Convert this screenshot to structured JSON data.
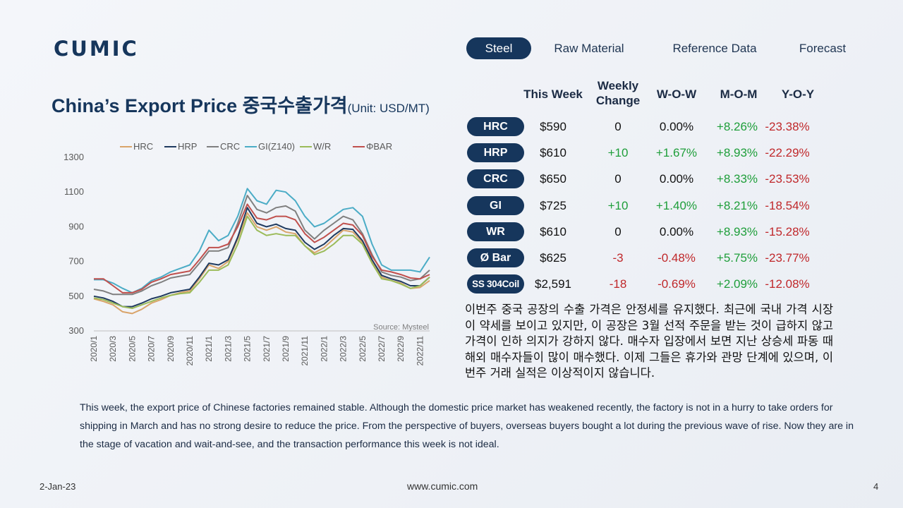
{
  "brand": {
    "logo": "CUMIC"
  },
  "nav": {
    "items": [
      {
        "label": "Steel",
        "active": true
      },
      {
        "label": "Raw Material",
        "active": false
      },
      {
        "label": "Reference Data",
        "active": false
      },
      {
        "label": "Forecast",
        "active": false
      }
    ]
  },
  "title": {
    "main": "China’s Export Price 중국수출가격",
    "unit": "(Unit: USD/MT)"
  },
  "table": {
    "headers": [
      "This Week",
      "Weekly Change",
      "W-O-W",
      "M-O-M",
      "Y-O-Y"
    ],
    "rows": [
      {
        "product": "HRC",
        "this_week": "$590",
        "weekly_change": "0",
        "wow": "0.00%",
        "mom": "+8.26%",
        "yoy": "-23.38%"
      },
      {
        "product": "HRP",
        "this_week": "$610",
        "weekly_change": "+10",
        "wow": "+1.67%",
        "mom": "+8.93%",
        "yoy": "-22.29%"
      },
      {
        "product": "CRC",
        "this_week": "$650",
        "weekly_change": "0",
        "wow": "0.00%",
        "mom": "+8.33%",
        "yoy": "-23.53%"
      },
      {
        "product": "GI",
        "this_week": "$725",
        "weekly_change": "+10",
        "wow": "+1.40%",
        "mom": "+8.21%",
        "yoy": "-18.54%"
      },
      {
        "product": "WR",
        "this_week": "$610",
        "weekly_change": "0",
        "wow": "0.00%",
        "mom": "+8.93%",
        "yoy": "-15.28%"
      },
      {
        "product": "Ø Bar",
        "this_week": "$625",
        "weekly_change": "-3",
        "wow": "-0.48%",
        "mom": "+5.75%",
        "yoy": "-23.77%"
      },
      {
        "product": "SS 304Coil",
        "this_week": "$2,591",
        "weekly_change": "-18",
        "wow": "-0.69%",
        "mom": "+2.09%",
        "yoy": "-12.08%"
      }
    ]
  },
  "commentary": {
    "korean": "이번주 중국 공장의 수출 가격은 안정세를 유지했다. 최근에 국내 가격 시장이 약세를 보이고 있지만, 이 공장은 3월 선적 주문을 받는 것이 급하지 않고 가격이 인하 의지가 강하지 않다. 매수자 입장에서 보면 지난 상승세 파동 때 해외 매수자들이 많이 매수했다. 이제 그들은 휴가와 관망 단계에 있으며, 이번주 거래 실적은 이상적이지 않습니다.",
    "english": "This week, the export price of Chinese factories remained stable. Although the domestic price market has weakened recently, the factory is not in a hurry to take orders for shipping in March and has no strong desire to reduce the price. From the perspective of buyers, overseas buyers bought a lot during the previous wave of rise. Now they are in the stage of vacation and wait-and-see, and the transaction performance this week is not ideal."
  },
  "footer": {
    "date": "2-Jan-23",
    "url": "www.cumic.com",
    "page": "4"
  },
  "colors": {
    "navy": "#16365c",
    "positive": "#1e9e3a",
    "negative": "#c0282b"
  },
  "chart_data": {
    "type": "line",
    "title": "",
    "source": "Source: Mysteel",
    "ylim": [
      300,
      1300
    ],
    "yticks": [
      300,
      500,
      700,
      900,
      1100,
      1300
    ],
    "xlim": [
      "2020/1",
      "2022/12"
    ],
    "xtick_labels": [
      "2020/1",
      "2020/3",
      "2020/5",
      "2020/7",
      "2020/9",
      "2020/11",
      "2021/1",
      "2021/3",
      "2021/5",
      "2021/7",
      "2021/9",
      "2021/11",
      "2022/1",
      "2022/3",
      "2022/5",
      "2022/7",
      "2022/9",
      "2022/11"
    ],
    "legend_position": "top",
    "grid": false,
    "x": [
      "2020/1",
      "2020/2",
      "2020/3",
      "2020/4",
      "2020/5",
      "2020/6",
      "2020/7",
      "2020/8",
      "2020/9",
      "2020/10",
      "2020/11",
      "2020/12",
      "2021/1",
      "2021/2",
      "2021/3",
      "2021/4",
      "2021/5",
      "2021/6",
      "2021/7",
      "2021/8",
      "2021/9",
      "2021/10",
      "2021/11",
      "2021/12",
      "2022/1",
      "2022/2",
      "2022/3",
      "2022/4",
      "2022/5",
      "2022/6",
      "2022/7",
      "2022/8",
      "2022/9",
      "2022/10",
      "2022/11",
      "2022/12"
    ],
    "series": [
      {
        "name": "HRC",
        "color": "#d9a46a",
        "values": [
          485,
          470,
          450,
          410,
          400,
          425,
          460,
          480,
          505,
          520,
          530,
          600,
          680,
          660,
          700,
          830,
          980,
          900,
          880,
          900,
          870,
          860,
          790,
          750,
          780,
          830,
          880,
          870,
          810,
          700,
          610,
          590,
          575,
          545,
          550,
          590
        ]
      },
      {
        "name": "HRP",
        "color": "#1f3a5f",
        "values": [
          500,
          490,
          470,
          440,
          440,
          460,
          485,
          500,
          520,
          530,
          540,
          610,
          690,
          680,
          710,
          840,
          1010,
          920,
          900,
          915,
          890,
          880,
          810,
          770,
          800,
          850,
          890,
          885,
          820,
          710,
          620,
          600,
          585,
          560,
          560,
          610
        ]
      },
      {
        "name": "CRC",
        "color": "#7f7f7f",
        "values": [
          540,
          530,
          510,
          510,
          510,
          530,
          560,
          580,
          605,
          615,
          625,
          690,
          760,
          760,
          780,
          920,
          1080,
          1000,
          980,
          1010,
          1020,
          990,
          880,
          830,
          880,
          920,
          960,
          940,
          860,
          740,
          640,
          620,
          610,
          590,
          600,
          650
        ]
      },
      {
        "name": "GI(Z140)",
        "color": "#4bacc6",
        "values": [
          595,
          595,
          575,
          545,
          520,
          545,
          590,
          610,
          640,
          660,
          680,
          760,
          880,
          820,
          850,
          960,
          1120,
          1050,
          1030,
          1110,
          1100,
          1050,
          960,
          900,
          920,
          960,
          1000,
          1010,
          960,
          800,
          680,
          650,
          650,
          650,
          640,
          725
        ]
      },
      {
        "name": "W/R",
        "color": "#9bbb59",
        "values": [
          490,
          480,
          460,
          440,
          430,
          450,
          470,
          490,
          505,
          515,
          520,
          580,
          650,
          650,
          680,
          800,
          960,
          880,
          850,
          860,
          850,
          850,
          790,
          740,
          760,
          800,
          850,
          850,
          800,
          690,
          600,
          590,
          570,
          545,
          560,
          610
        ]
      },
      {
        "name": "ΦBAR",
        "color": "#c0504d",
        "values": [
          600,
          600,
          560,
          520,
          520,
          540,
          580,
          600,
          625,
          635,
          645,
          710,
          780,
          780,
          800,
          900,
          1030,
          950,
          940,
          960,
          960,
          940,
          860,
          810,
          840,
          880,
          920,
          910,
          850,
          730,
          650,
          640,
          625,
          605,
          600,
          625
        ]
      }
    ]
  }
}
